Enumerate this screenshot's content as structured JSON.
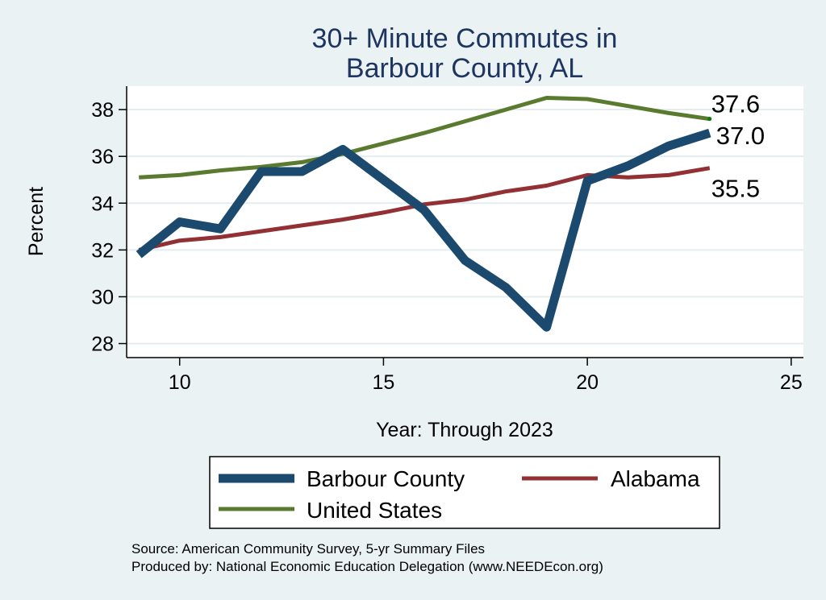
{
  "chart_data": {
    "type": "line",
    "title_lines": [
      "30+ Minute Commutes in",
      "Barbour County, AL"
    ],
    "xlabel": "Year: Through 2023",
    "ylabel": "Percent",
    "xlim": [
      8.7,
      25.3
    ],
    "ylim": [
      27.4,
      39.0
    ],
    "xticks": [
      10,
      15,
      20,
      25
    ],
    "yticks": [
      28,
      30,
      32,
      34,
      36,
      38
    ],
    "grid": true,
    "x": [
      9,
      10,
      11,
      12,
      13,
      14,
      15,
      16,
      17,
      18,
      19,
      20,
      21,
      22,
      23
    ],
    "series": [
      {
        "name": "United States",
        "color": "#5a7b2f",
        "width": 5,
        "values": [
          35.1,
          35.2,
          35.4,
          35.55,
          35.75,
          36.1,
          36.55,
          37.0,
          37.5,
          38.0,
          38.5,
          38.45,
          38.15,
          37.85,
          37.6
        ],
        "end_label": "37.6",
        "end_marker_color": "#0a7a0a"
      },
      {
        "name": "Alabama",
        "color": "#923033",
        "width": 5,
        "values": [
          32.0,
          32.4,
          32.55,
          32.8,
          33.05,
          33.3,
          33.6,
          33.95,
          34.15,
          34.5,
          34.75,
          35.2,
          35.1,
          35.2,
          35.5
        ],
        "end_label": "35.5"
      },
      {
        "name": "Barbour County",
        "color": "#1b4a6e",
        "width": 11,
        "values": [
          31.8,
          33.2,
          32.9,
          35.35,
          35.35,
          36.3,
          35.0,
          33.7,
          31.55,
          30.4,
          28.7,
          34.95,
          35.6,
          36.45,
          37.0
        ],
        "end_label": "37.0"
      }
    ],
    "legend": {
      "position": "bottom",
      "entries": [
        "Barbour County",
        "Alabama",
        "United States"
      ]
    },
    "notes": [
      "Source: American Community Survey, 5-yr Summary Files",
      "Produced by: National Economic Education Delegation (www.NEEDEcon.org)"
    ]
  }
}
